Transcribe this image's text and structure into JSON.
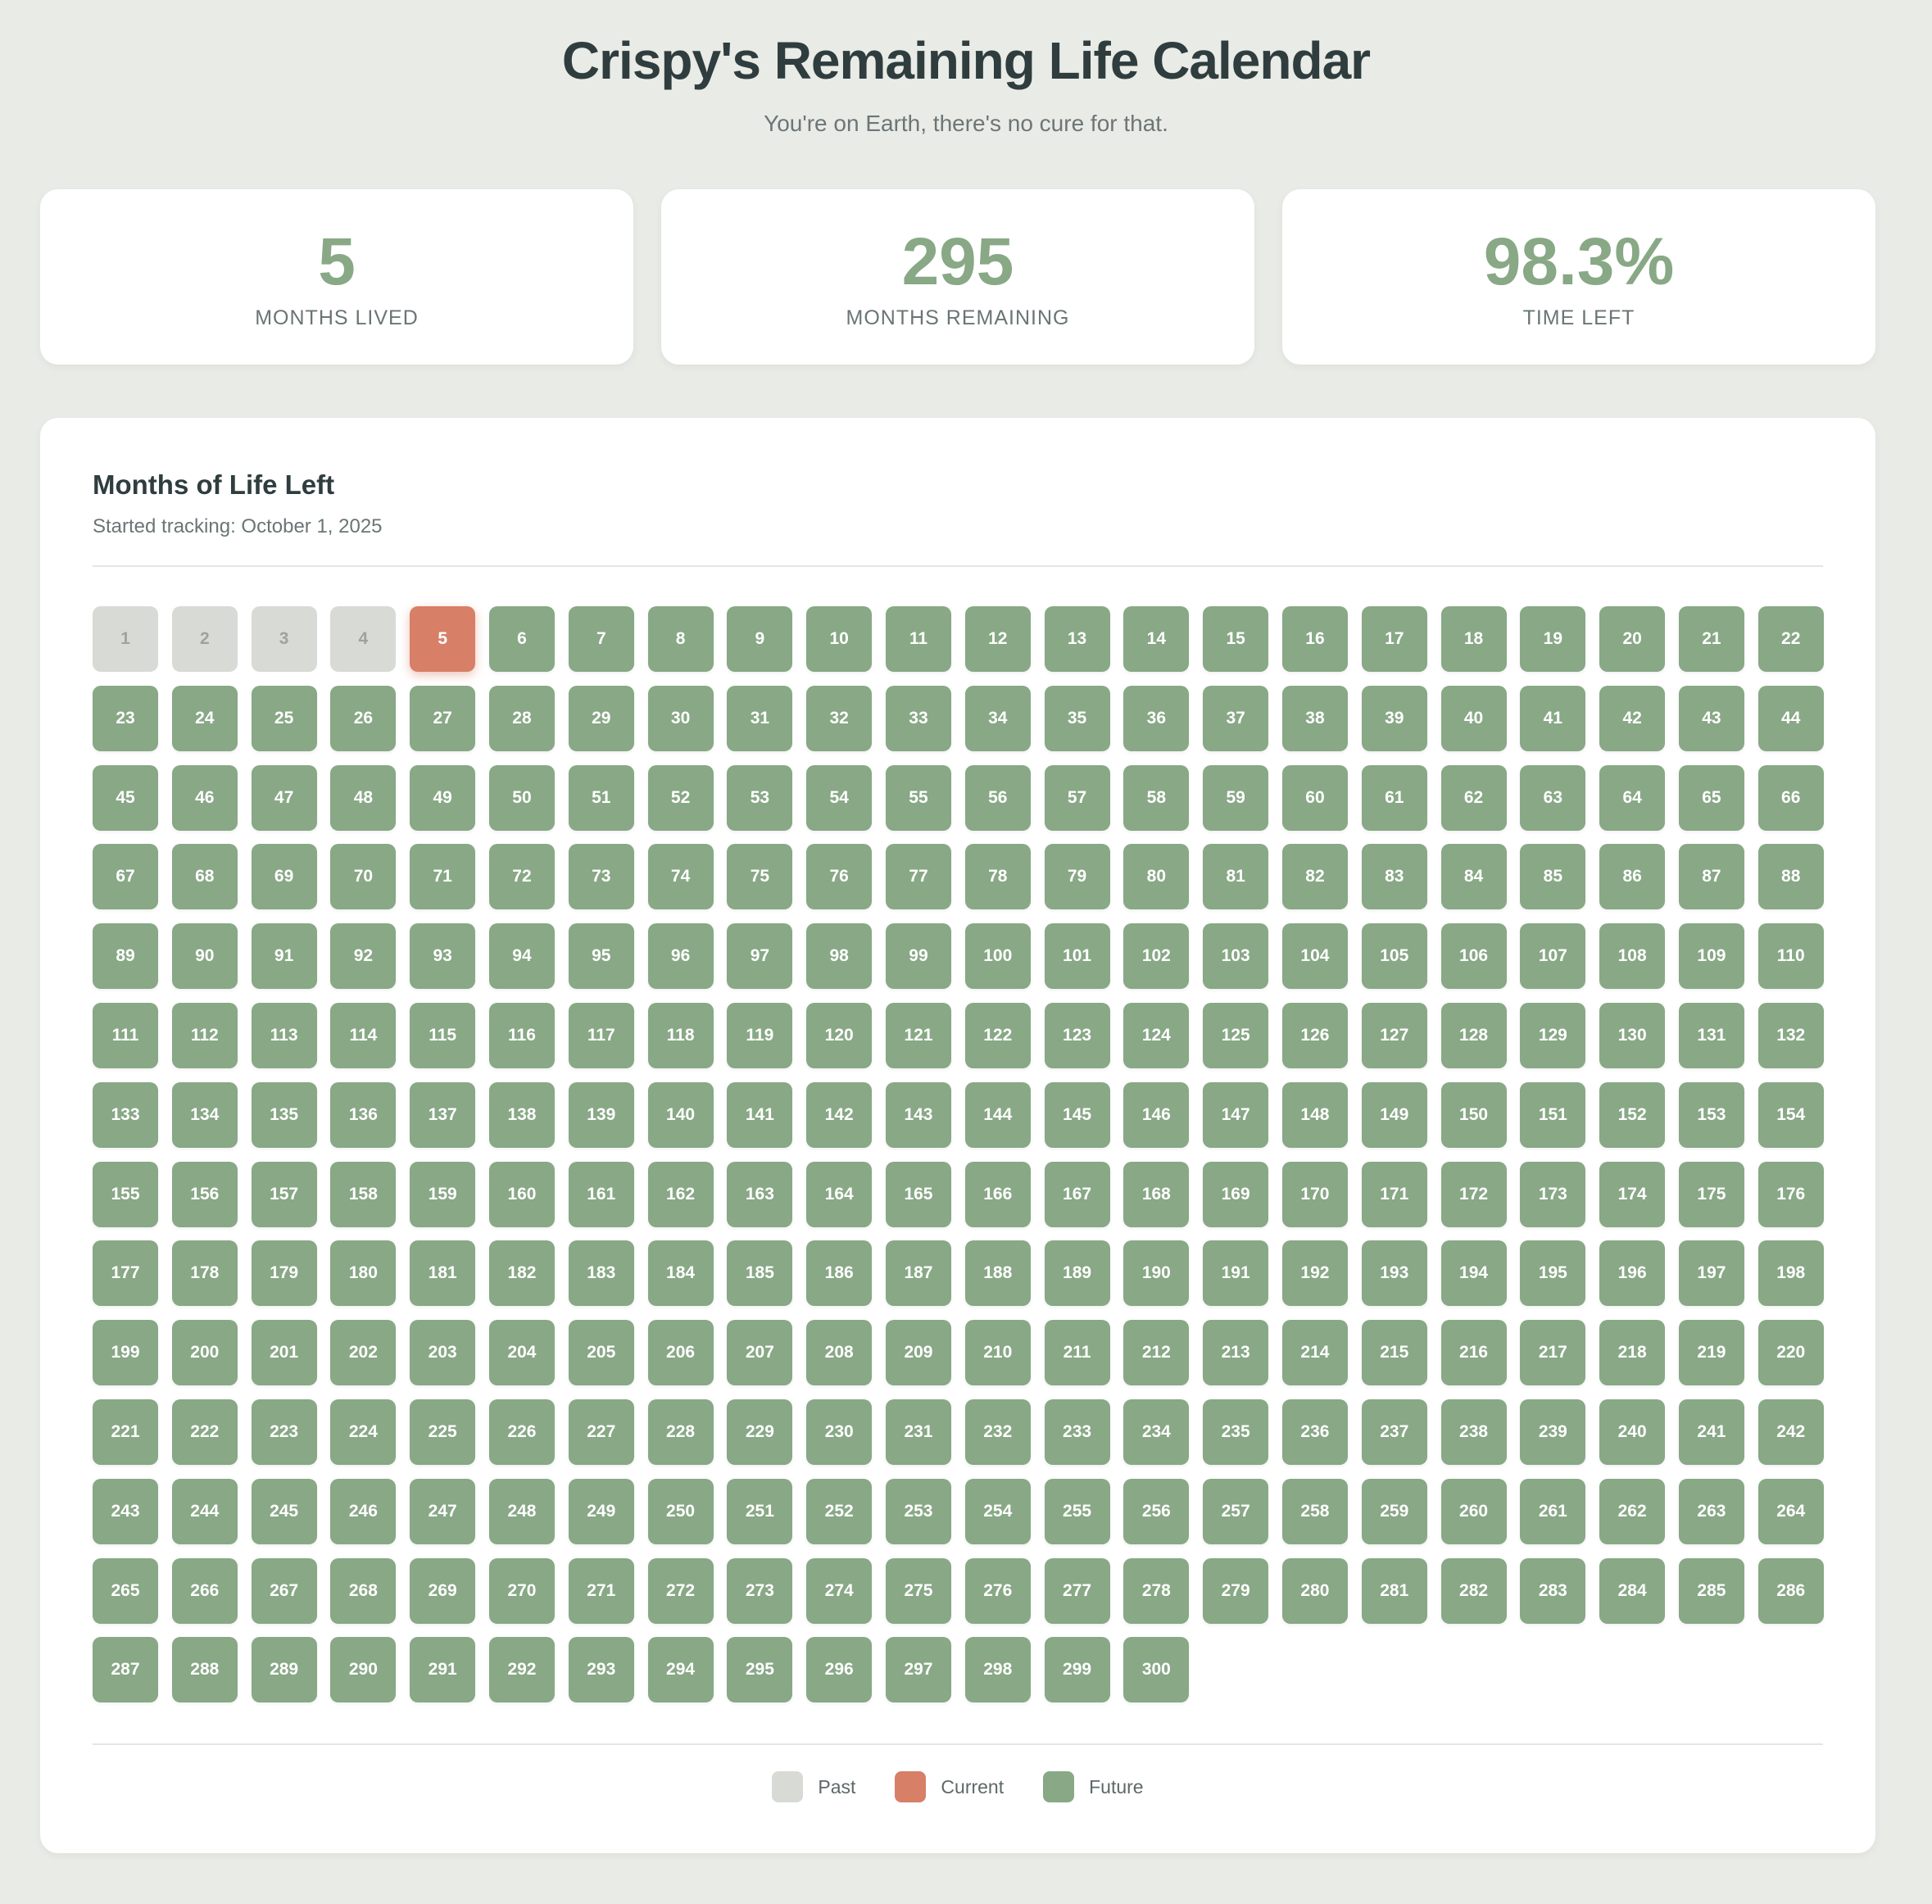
{
  "header": {
    "title": "Crispy's Remaining Life Calendar",
    "subtitle": "You're on Earth, there's no cure for that."
  },
  "stats": [
    {
      "value": "5",
      "label": "MONTHS LIVED"
    },
    {
      "value": "295",
      "label": "MONTHS REMAINING"
    },
    {
      "value": "98.3%",
      "label": "TIME LEFT"
    }
  ],
  "calendar": {
    "title": "Months of Life Left",
    "tracking_text": "Started tracking: October 1, 2025",
    "total_months": 300,
    "current_month": 5,
    "colors": {
      "past": "#d8dad5",
      "current": "#d77f67",
      "future": "#88a886"
    }
  },
  "legend": [
    {
      "key": "past",
      "label": "Past"
    },
    {
      "key": "current",
      "label": "Current"
    },
    {
      "key": "future",
      "label": "Future"
    }
  ]
}
